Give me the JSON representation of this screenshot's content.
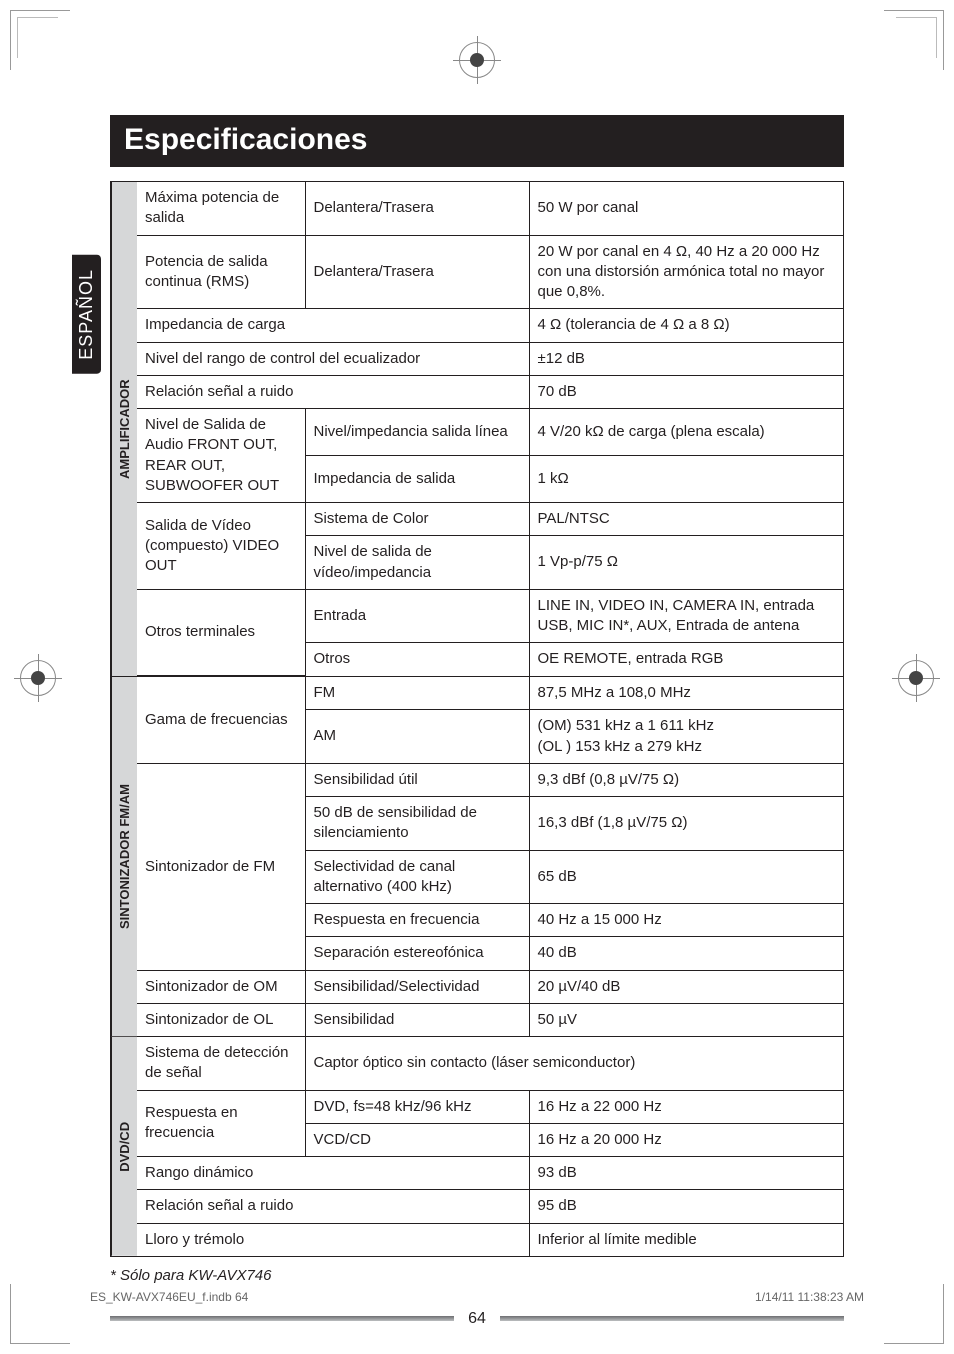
{
  "title": "Especificaciones",
  "langTab": "ESPAÑOL",
  "sections": [
    {
      "label": "AMPLIFICADOR",
      "rows": [
        {
          "cells": [
            "Máxima potencia de salida",
            "Delantera/Trasera",
            "50 W por canal"
          ],
          "spans": [
            1,
            1,
            1
          ]
        },
        {
          "cells": [
            "Potencia de salida continua (RMS)",
            "Delantera/Trasera",
            "20 W por canal en 4 Ω, 40 Hz a 20 000 Hz con una distorsión armónica total no mayor que 0,8%."
          ],
          "spans": [
            1,
            1,
            1
          ]
        },
        {
          "cells": [
            "Impedancia de carga",
            "4 Ω (tolerancia de 4 Ω a 8 Ω)"
          ],
          "spans": [
            2,
            1
          ]
        },
        {
          "cells": [
            "Nivel del rango de control del ecualizador",
            "±12 dB"
          ],
          "spans": [
            2,
            1
          ]
        },
        {
          "cells": [
            "Relación señal a ruido",
            "70 dB"
          ],
          "spans": [
            2,
            1
          ]
        },
        {
          "cells": [
            "Nivel de Salida de Audio FRONT OUT, REAR OUT, SUBWOOFER OUT",
            "Nivel/impedancia salida línea",
            "4 V/20 kΩ de carga (plena escala)"
          ],
          "spans": [
            1,
            1,
            1
          ],
          "rowspanFirst": 2
        },
        {
          "cells": [
            "Impedancia de salida",
            "1 kΩ"
          ],
          "spans": [
            1,
            1
          ],
          "skipFirst": true
        },
        {
          "cells": [
            "Salida de Vídeo (compuesto) VIDEO OUT",
            "Sistema de Color",
            "PAL/NTSC"
          ],
          "spans": [
            1,
            1,
            1
          ],
          "rowspanFirst": 2
        },
        {
          "cells": [
            "Nivel de salida de vídeo/impedancia",
            "1 Vp-p/75 Ω"
          ],
          "spans": [
            1,
            1
          ],
          "skipFirst": true
        },
        {
          "cells": [
            "Otros terminales",
            "Entrada",
            "LINE IN, VIDEO IN, CAMERA IN, entrada USB, MIC IN*, AUX, Entrada de antena"
          ],
          "spans": [
            1,
            1,
            1
          ],
          "rowspanFirst": 2
        },
        {
          "cells": [
            "Otros",
            "OE REMOTE, entrada RGB"
          ],
          "spans": [
            1,
            1
          ],
          "skipFirst": true
        }
      ]
    },
    {
      "label": "SINTONIZADOR FM/AM",
      "rows": [
        {
          "cells": [
            "Gama de frecuencias",
            "FM",
            "87,5 MHz a 108,0 MHz"
          ],
          "spans": [
            1,
            1,
            1
          ],
          "rowspanFirst": 2
        },
        {
          "cells": [
            "AM",
            "(OM) 531 kHz a 1 611 kHz\n(OL ) 153 kHz a 279 kHz"
          ],
          "spans": [
            1,
            1
          ],
          "skipFirst": true
        },
        {
          "cells": [
            "Sintonizador de FM",
            "Sensibilidad útil",
            "9,3 dBf (0,8 µV/75 Ω)"
          ],
          "spans": [
            1,
            1,
            1
          ],
          "rowspanFirst": 5
        },
        {
          "cells": [
            "50 dB de sensibilidad de silenciamiento",
            "16,3 dBf (1,8 µV/75 Ω)"
          ],
          "spans": [
            1,
            1
          ],
          "skipFirst": true
        },
        {
          "cells": [
            "Selectividad de canal alternativo (400 kHz)",
            "65 dB"
          ],
          "spans": [
            1,
            1
          ],
          "skipFirst": true
        },
        {
          "cells": [
            "Respuesta en frecuencia",
            "40 Hz a 15 000 Hz"
          ],
          "spans": [
            1,
            1
          ],
          "skipFirst": true
        },
        {
          "cells": [
            "Separación estereofónica",
            "40 dB"
          ],
          "spans": [
            1,
            1
          ],
          "skipFirst": true
        },
        {
          "cells": [
            "Sintonizador de OM",
            "Sensibilidad/Selectividad",
            "20 µV/40 dB"
          ],
          "spans": [
            1,
            1,
            1
          ]
        },
        {
          "cells": [
            "Sintonizador de OL",
            "Sensibilidad",
            "50 µV"
          ],
          "spans": [
            1,
            1,
            1
          ]
        }
      ]
    },
    {
      "label": "DVD/CD",
      "rows": [
        {
          "cells": [
            "Sistema de detección de señal",
            "Captor óptico sin contacto (láser semiconductor)"
          ],
          "spans": [
            1,
            2
          ]
        },
        {
          "cells": [
            "Respuesta en frecuencia",
            "DVD, fs=48 kHz/96 kHz",
            "16 Hz a 22 000 Hz"
          ],
          "spans": [
            1,
            1,
            1
          ],
          "rowspanFirst": 2
        },
        {
          "cells": [
            "VCD/CD",
            "16 Hz a 20 000 Hz"
          ],
          "spans": [
            1,
            1
          ],
          "skipFirst": true
        },
        {
          "cells": [
            "Rango dinámico",
            "93 dB"
          ],
          "spans": [
            2,
            1
          ]
        },
        {
          "cells": [
            "Relación señal a ruido",
            "95 dB"
          ],
          "spans": [
            2,
            1
          ]
        },
        {
          "cells": [
            "Lloro y trémolo",
            "Inferior al límite medible"
          ],
          "spans": [
            2,
            1
          ]
        }
      ]
    }
  ],
  "footnote": "*  Sólo para KW-AVX746",
  "pageNumber": "64",
  "footerLeft": "ES_KW-AVX746EU_f.indb   64",
  "footerRight": "1/14/11   11:38:23 AM"
}
